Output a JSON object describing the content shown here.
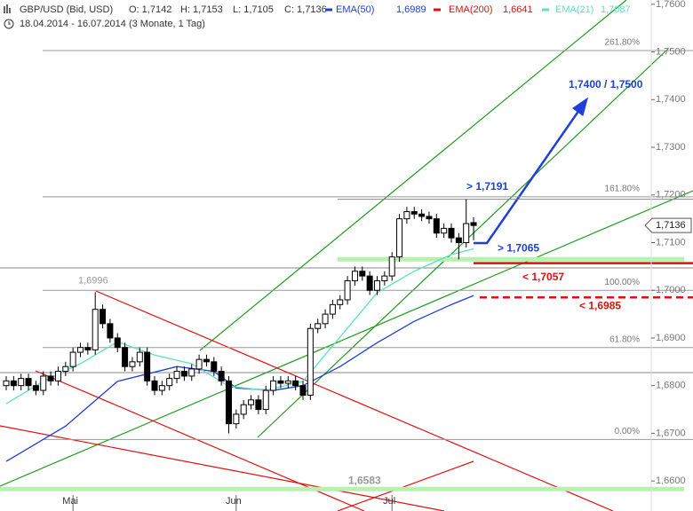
{
  "chart_data": {
    "type": "candlestick",
    "title": "GBP/USD (Bid, USD)",
    "ohlc_labels": [
      "O: 1,7142",
      "H: 1,7153",
      "L: 1,7105",
      "C: 1,7136"
    ],
    "subtitle": "18.04.2014 - 16.07.2014 (3 Monate, 1 Tag)",
    "categories": [
      null,
      null,
      null,
      null,
      null,
      null,
      null,
      null,
      null,
      "Mai",
      null,
      null,
      null,
      null,
      null,
      null,
      null,
      null,
      null,
      null,
      null,
      null,
      null,
      null,
      null,
      null,
      null,
      null,
      null,
      null,
      null,
      "Jun",
      null,
      null,
      null,
      null,
      null,
      null,
      null,
      null,
      null,
      null,
      null,
      null,
      null,
      null,
      null,
      null,
      null,
      null,
      null,
      null,
      "Jul",
      null,
      null,
      null,
      null,
      null,
      null,
      null,
      null,
      null,
      null,
      null
    ],
    "open": [
      1.68,
      1.681,
      1.68,
      1.6815,
      1.68,
      1.679,
      1.682,
      1.681,
      1.683,
      1.684,
      1.687,
      1.688,
      1.6875,
      1.696,
      1.693,
      1.69,
      1.688,
      1.684,
      1.685,
      1.687,
      1.681,
      1.679,
      1.68,
      1.6815,
      1.683,
      1.682,
      1.6835,
      1.6855,
      1.685,
      1.683,
      1.681,
      1.672,
      1.674,
      1.676,
      1.677,
      1.675,
      1.679,
      1.681,
      1.6805,
      1.681,
      1.68,
      1.678,
      1.692,
      1.693,
      1.695,
      1.697,
      1.698,
      1.702,
      1.704,
      1.703,
      1.7,
      1.702,
      1.703,
      1.707,
      1.715,
      1.7165,
      1.716,
      1.7155,
      1.715,
      1.712,
      1.713,
      1.711,
      1.71,
      1.7142
    ],
    "high": [
      1.682,
      1.682,
      1.6825,
      1.6825,
      1.681,
      1.683,
      1.683,
      1.684,
      1.685,
      1.688,
      1.689,
      1.689,
      1.6996,
      1.697,
      1.694,
      1.691,
      1.689,
      1.686,
      1.688,
      1.688,
      1.682,
      1.681,
      1.6825,
      1.684,
      1.684,
      1.6845,
      1.6865,
      1.6865,
      1.686,
      1.684,
      1.682,
      1.675,
      1.677,
      1.678,
      1.678,
      1.68,
      1.682,
      1.682,
      1.682,
      1.682,
      1.681,
      1.693,
      1.694,
      1.696,
      1.698,
      1.699,
      1.703,
      1.705,
      1.705,
      1.704,
      1.703,
      1.704,
      1.708,
      1.716,
      1.7175,
      1.7175,
      1.717,
      1.7165,
      1.716,
      1.714,
      1.714,
      1.712,
      1.7191,
      1.7153
    ],
    "low": [
      1.679,
      1.679,
      1.679,
      1.679,
      1.678,
      1.678,
      1.68,
      1.68,
      1.682,
      1.683,
      1.686,
      1.6865,
      1.6865,
      1.692,
      1.689,
      1.687,
      1.683,
      1.683,
      1.684,
      1.68,
      1.678,
      1.678,
      1.679,
      1.6805,
      1.681,
      1.681,
      1.6825,
      1.684,
      1.682,
      1.68,
      1.67,
      1.671,
      1.673,
      1.675,
      1.674,
      1.674,
      1.678,
      1.6795,
      1.6795,
      1.679,
      1.677,
      1.677,
      1.691,
      1.692,
      1.694,
      1.696,
      1.697,
      1.701,
      1.702,
      1.699,
      1.699,
      1.701,
      1.702,
      1.706,
      1.714,
      1.715,
      1.7145,
      1.714,
      1.711,
      1.711,
      1.71,
      1.7065,
      1.709,
      1.7105
    ],
    "close": [
      1.681,
      1.68,
      1.6815,
      1.68,
      1.679,
      1.682,
      1.681,
      1.683,
      1.684,
      1.687,
      1.688,
      1.6875,
      1.696,
      1.693,
      1.69,
      1.688,
      1.684,
      1.685,
      1.687,
      1.681,
      1.679,
      1.68,
      1.6815,
      1.683,
      1.682,
      1.6835,
      1.6855,
      1.685,
      1.683,
      1.681,
      1.672,
      1.674,
      1.676,
      1.677,
      1.675,
      1.679,
      1.681,
      1.6805,
      1.681,
      1.68,
      1.678,
      1.692,
      1.693,
      1.695,
      1.697,
      1.698,
      1.702,
      1.704,
      1.703,
      1.7,
      1.702,
      1.703,
      1.707,
      1.715,
      1.7165,
      1.716,
      1.7155,
      1.715,
      1.712,
      1.713,
      1.711,
      1.71,
      1.714,
      1.7136
    ],
    "last_label": "1,7136",
    "series": [
      {
        "name": "EMA(50)",
        "color": "#1f3fd6",
        "value_label": "1,6989",
        "x": [
          0,
          8,
          15,
          23,
          28,
          31,
          36,
          40,
          45,
          50,
          55,
          60,
          63
        ],
        "values": [
          1.6641,
          1.6715,
          1.6809,
          1.684,
          1.683,
          1.6795,
          1.679,
          1.68,
          1.684,
          1.689,
          1.6935,
          1.697,
          1.6989
        ]
      },
      {
        "name": "EMA(200)",
        "color": "#e01010",
        "value_label": "1,6641"
      },
      {
        "name": "EMA(21)",
        "color": "#5fe0c0",
        "value_label": "1,7087",
        "x": [
          0,
          5,
          10,
          15,
          20,
          25,
          30,
          35,
          40,
          45,
          50,
          55,
          60,
          63
        ],
        "values": [
          1.6762,
          1.6809,
          1.6846,
          1.6892,
          1.6864,
          1.6846,
          1.6799,
          1.679,
          1.6809,
          1.6902,
          1.6995,
          1.704,
          1.7075,
          1.7087
        ]
      }
    ],
    "ylim": [
      1.6537,
      1.7609
    ],
    "yticks": [
      {
        "value": 1.66,
        "label": "1,6600"
      },
      {
        "value": 1.67,
        "label": "1,6700"
      },
      {
        "value": 1.68,
        "label": "1,6800"
      },
      {
        "value": 1.69,
        "label": "1,6900"
      },
      {
        "value": 1.7,
        "label": "1,7000"
      },
      {
        "value": 1.71,
        "label": "1,7100"
      },
      {
        "value": 1.72,
        "label": "1,7200"
      },
      {
        "value": 1.73,
        "label": "1,7300"
      },
      {
        "value": 1.74,
        "label": "1,7400"
      },
      {
        "value": 1.75,
        "label": "1,7500"
      },
      {
        "value": 1.76,
        "label": "1,7600"
      }
    ],
    "fibonacci": [
      {
        "text": "261.80%",
        "price": 1.7503
      },
      {
        "text": "161.80%",
        "price": 1.7196
      },
      {
        "text": "100.00%",
        "price": 1.7
      },
      {
        "text": "61.80%",
        "price": 1.688
      },
      {
        "text": "0.00%",
        "price": 1.6687
      }
    ],
    "levels": [
      {
        "text": "> 1,7191",
        "price": 1.7191,
        "color": "#1f3fd6",
        "line": "thin"
      },
      {
        "text": "> 1,7065",
        "price": 1.7065,
        "color": "#1f3fd6",
        "line": "band"
      },
      {
        "text": "< 1,7057",
        "price": 1.7057,
        "color": "#e01010",
        "line": "solid"
      },
      {
        "text": "< 1,6985",
        "price": 1.6985,
        "color": "#e01010",
        "line": "dashed"
      },
      {
        "text": "1,6996",
        "price": 1.6996,
        "color": "#999999"
      },
      {
        "text": "1,6583",
        "price": 1.6583,
        "color": "#999999",
        "line": "band"
      }
    ],
    "target": "1,7400 / 1,7500"
  }
}
